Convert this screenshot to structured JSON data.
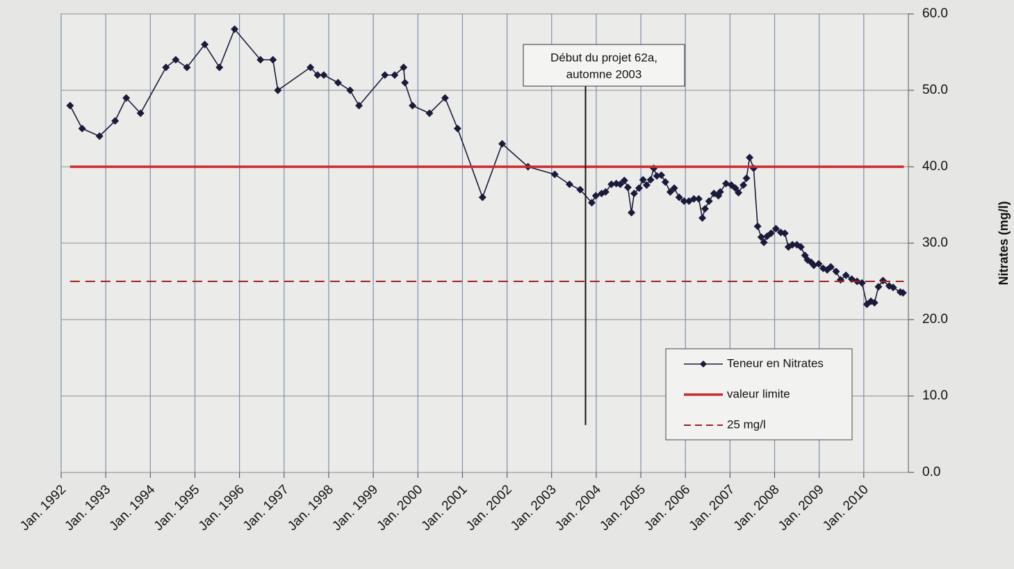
{
  "chart_data": {
    "type": "line",
    "y_label": "Nitrates (mg/l)",
    "xlim": [
      1992,
      2011
    ],
    "ylim": [
      0,
      60
    ],
    "xticks": [
      {
        "value": 1992,
        "label": "Jan. 1992"
      },
      {
        "value": 1993,
        "label": "Jan. 1993"
      },
      {
        "value": 1994,
        "label": "Jan. 1994"
      },
      {
        "value": 1995,
        "label": "Jan. 1995"
      },
      {
        "value": 1996,
        "label": "Jan. 1996"
      },
      {
        "value": 1997,
        "label": "Jan. 1997"
      },
      {
        "value": 1998,
        "label": "Jan. 1998"
      },
      {
        "value": 1999,
        "label": "Jan. 1999"
      },
      {
        "value": 2000,
        "label": "Jan. 2000"
      },
      {
        "value": 2001,
        "label": "Jan. 2001"
      },
      {
        "value": 2002,
        "label": "Jan. 2002"
      },
      {
        "value": 2003,
        "label": "Jan. 2003"
      },
      {
        "value": 2004,
        "label": "Jan. 2004"
      },
      {
        "value": 2005,
        "label": "Jan. 2005"
      },
      {
        "value": 2006,
        "label": "Jan. 2006"
      },
      {
        "value": 2007,
        "label": "Jan. 2007"
      },
      {
        "value": 2008,
        "label": "Jan. 2008"
      },
      {
        "value": 2009,
        "label": "Jan. 2009"
      },
      {
        "value": 2010,
        "label": "Jan. 2010"
      }
    ],
    "yticks": [
      {
        "value": 0,
        "label": "0.0"
      },
      {
        "value": 10,
        "label": "10.0"
      },
      {
        "value": 20,
        "label": "20.0"
      },
      {
        "value": 30,
        "label": "30.0"
      },
      {
        "value": 40,
        "label": "40.0"
      },
      {
        "value": 50,
        "label": "50.0"
      },
      {
        "value": 60,
        "label": "60.0"
      }
    ],
    "grid": true,
    "legend": "lower right",
    "series": [
      {
        "name": "Teneur en Nitrates",
        "color": "#1a1a3a",
        "marker": "diamond",
        "x": [
          1992.2,
          1992.47,
          1992.86,
          1993.21,
          1993.46,
          1993.78,
          1994.35,
          1994.57,
          1994.82,
          1995.22,
          1995.55,
          1995.89,
          1996.47,
          1996.75,
          1996.86,
          1997.59,
          1997.75,
          1997.89,
          1998.21,
          1998.48,
          1998.68,
          1999.26,
          1999.48,
          1999.68,
          1999.71,
          1999.88,
          2000.26,
          2000.61,
          2000.89,
          2001.45,
          2001.89,
          2002.47,
          2003.07,
          2003.4,
          2003.64,
          2003.9,
          2003.99,
          2004.12,
          2004.21,
          2004.34,
          2004.45,
          2004.54,
          2004.63,
          2004.71,
          2004.79,
          2004.85,
          2004.96,
          2005.05,
          2005.13,
          2005.22,
          2005.29,
          2005.36,
          2005.46,
          2005.55,
          2005.66,
          2005.75,
          2005.86,
          2005.97,
          2006.08,
          2006.19,
          2006.3,
          2006.38,
          2006.44,
          2006.53,
          2006.64,
          2006.74,
          2006.78,
          2006.91,
          2007.03,
          2007.12,
          2007.19,
          2007.3,
          2007.37,
          2007.44,
          2007.53,
          2007.62,
          2007.7,
          2007.76,
          2007.83,
          2007.92,
          2008.03,
          2008.14,
          2008.23,
          2008.31,
          2008.4,
          2008.5,
          2008.59,
          2008.68,
          2008.74,
          2008.82,
          2008.88,
          2008.99,
          2009.09,
          2009.18,
          2009.26,
          2009.38,
          2009.48,
          2009.6,
          2009.73,
          2009.85,
          2009.96,
          2010.07,
          2010.16,
          2010.24,
          2010.33,
          2010.43,
          2010.57,
          2010.66,
          2010.82,
          2010.88
        ],
        "values": [
          48,
          45,
          44,
          46,
          49,
          47,
          53,
          54,
          53,
          56,
          53,
          58,
          54,
          54,
          50,
          53,
          52,
          52,
          51,
          50,
          48,
          52,
          52,
          53,
          51,
          48,
          47,
          49,
          45,
          36,
          43,
          40,
          39,
          37.7,
          37,
          35.3,
          36.2,
          36.5,
          36.7,
          37.7,
          37.8,
          37.7,
          38.2,
          37.3,
          34,
          36.5,
          37.2,
          38.3,
          37.6,
          38.3,
          39.8,
          38.8,
          38.9,
          38,
          36.7,
          37.2,
          36,
          35.5,
          35.5,
          35.8,
          35.8,
          33.3,
          34.5,
          35.5,
          36.5,
          36.2,
          36.7,
          37.8,
          37.6,
          37.2,
          36.6,
          37.6,
          38.5,
          41.2,
          39.8,
          32.2,
          30.8,
          30.1,
          30.9,
          31.3,
          31.9,
          31.4,
          31.3,
          29.5,
          29.8,
          29.8,
          29.5,
          28.4,
          27.8,
          27.5,
          27.1,
          27.3,
          26.7,
          26.5,
          26.9,
          26.3,
          25.2,
          25.8,
          25.3,
          25,
          24.8,
          22,
          22.4,
          22.2,
          24.3,
          25.1,
          24.4,
          24.2,
          23.6,
          23.5
        ]
      },
      {
        "name": "valeur limite",
        "color": "#cc2a2a",
        "x": [
          1992.2,
          2010.9
        ],
        "values": [
          40,
          40
        ]
      },
      {
        "name": "25 mg/l",
        "color": "#a02020",
        "dash": true,
        "x": [
          1992.2,
          2010.9
        ],
        "values": [
          25,
          25
        ]
      }
    ],
    "annotation": {
      "lines": [
        "Début du projet 62a,",
        "automne 2003"
      ],
      "x": 2003.76,
      "y": 6.2
    }
  }
}
